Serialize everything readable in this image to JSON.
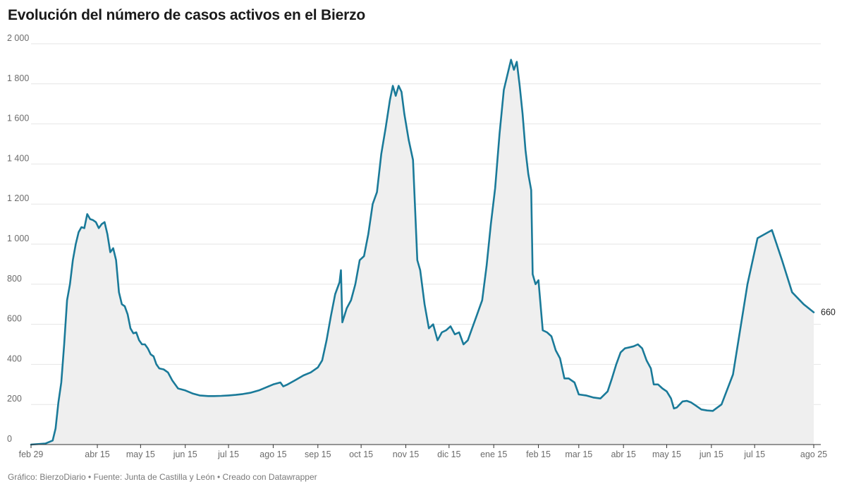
{
  "title": "Evolución del número de casos activos en el Bierzo",
  "footer": "Gráfico: BierzoDiario • Fuente: Junta de Castilla y León • Creado con Datawrapper",
  "colors": {
    "line": "#1a7a99",
    "area": "#efefef",
    "grid": "#e6e6e6",
    "axis": "#333333"
  },
  "chart_data": {
    "type": "area",
    "title": "Evolución del número de casos activos en el Bierzo",
    "ylim": [
      0,
      2000
    ],
    "y_ticks": [
      "0",
      "200",
      "400",
      "600",
      "800",
      "1 000",
      "1 200",
      "1 400",
      "1 600",
      "1 800",
      "2 000"
    ],
    "x_range": [
      "2020-02-29",
      "2021-08-25"
    ],
    "x_ticks": [
      {
        "date": "2020-02-29",
        "label": "feb 29"
      },
      {
        "date": "2020-04-15",
        "label": "abr 15"
      },
      {
        "date": "2020-05-15",
        "label": "may 15"
      },
      {
        "date": "2020-06-15",
        "label": "jun 15"
      },
      {
        "date": "2020-07-15",
        "label": "jul 15"
      },
      {
        "date": "2020-08-15",
        "label": "ago 15"
      },
      {
        "date": "2020-09-15",
        "label": "sep 15"
      },
      {
        "date": "2020-10-15",
        "label": "oct 15"
      },
      {
        "date": "2020-11-15",
        "label": "nov 15"
      },
      {
        "date": "2020-12-15",
        "label": "dic 15"
      },
      {
        "date": "2021-01-15",
        "label": "ene 15"
      },
      {
        "date": "2021-02-15",
        "label": "feb 15"
      },
      {
        "date": "2021-03-15",
        "label": "mar 15"
      },
      {
        "date": "2021-04-15",
        "label": "abr 15"
      },
      {
        "date": "2021-05-15",
        "label": "may 15"
      },
      {
        "date": "2021-06-15",
        "label": "jun 15"
      },
      {
        "date": "2021-07-15",
        "label": "jul 15"
      },
      {
        "date": "2021-08-25",
        "label": "ago 25"
      }
    ],
    "end_label": "660",
    "grid": true,
    "series": [
      {
        "points": [
          [
            "2020-02-29",
            0
          ],
          [
            "2020-03-10",
            5
          ],
          [
            "2020-03-15",
            20
          ],
          [
            "2020-03-17",
            80
          ],
          [
            "2020-03-19",
            210
          ],
          [
            "2020-03-21",
            310
          ],
          [
            "2020-03-23",
            500
          ],
          [
            "2020-03-25",
            720
          ],
          [
            "2020-03-27",
            800
          ],
          [
            "2020-03-29",
            920
          ],
          [
            "2020-03-31",
            1000
          ],
          [
            "2020-04-02",
            1060
          ],
          [
            "2020-04-04",
            1085
          ],
          [
            "2020-04-06",
            1080
          ],
          [
            "2020-04-08",
            1150
          ],
          [
            "2020-04-10",
            1125
          ],
          [
            "2020-04-12",
            1120
          ],
          [
            "2020-04-14",
            1110
          ],
          [
            "2020-04-16",
            1080
          ],
          [
            "2020-04-18",
            1100
          ],
          [
            "2020-04-20",
            1110
          ],
          [
            "2020-04-22",
            1050
          ],
          [
            "2020-04-24",
            960
          ],
          [
            "2020-04-26",
            980
          ],
          [
            "2020-04-28",
            920
          ],
          [
            "2020-04-30",
            760
          ],
          [
            "2020-05-02",
            700
          ],
          [
            "2020-05-04",
            690
          ],
          [
            "2020-05-06",
            650
          ],
          [
            "2020-05-08",
            580
          ],
          [
            "2020-05-10",
            555
          ],
          [
            "2020-05-12",
            560
          ],
          [
            "2020-05-14",
            520
          ],
          [
            "2020-05-16",
            500
          ],
          [
            "2020-05-18",
            500
          ],
          [
            "2020-05-20",
            480
          ],
          [
            "2020-05-22",
            450
          ],
          [
            "2020-05-24",
            440
          ],
          [
            "2020-05-26",
            400
          ],
          [
            "2020-05-28",
            380
          ],
          [
            "2020-05-31",
            375
          ],
          [
            "2020-06-03",
            360
          ],
          [
            "2020-06-06",
            320
          ],
          [
            "2020-06-10",
            280
          ],
          [
            "2020-06-15",
            270
          ],
          [
            "2020-06-20",
            255
          ],
          [
            "2020-06-25",
            245
          ],
          [
            "2020-07-01",
            242
          ],
          [
            "2020-07-05",
            242
          ],
          [
            "2020-07-10",
            243
          ],
          [
            "2020-07-15",
            245
          ],
          [
            "2020-07-20",
            248
          ],
          [
            "2020-07-25",
            252
          ],
          [
            "2020-07-30",
            258
          ],
          [
            "2020-08-05",
            270
          ],
          [
            "2020-08-10",
            285
          ],
          [
            "2020-08-15",
            300
          ],
          [
            "2020-08-20",
            310
          ],
          [
            "2020-08-22",
            290
          ],
          [
            "2020-08-25",
            300
          ],
          [
            "2020-08-30",
            320
          ],
          [
            "2020-09-05",
            345
          ],
          [
            "2020-09-10",
            360
          ],
          [
            "2020-09-15",
            385
          ],
          [
            "2020-09-18",
            420
          ],
          [
            "2020-09-21",
            520
          ],
          [
            "2020-09-24",
            640
          ],
          [
            "2020-09-27",
            750
          ],
          [
            "2020-09-30",
            810
          ],
          [
            "2020-10-01",
            870
          ],
          [
            "2020-10-02",
            610
          ],
          [
            "2020-10-05",
            680
          ],
          [
            "2020-10-08",
            720
          ],
          [
            "2020-10-11",
            800
          ],
          [
            "2020-10-14",
            920
          ],
          [
            "2020-10-17",
            940
          ],
          [
            "2020-10-20",
            1050
          ],
          [
            "2020-10-23",
            1200
          ],
          [
            "2020-10-26",
            1260
          ],
          [
            "2020-10-29",
            1450
          ],
          [
            "2020-11-01",
            1580
          ],
          [
            "2020-11-04",
            1720
          ],
          [
            "2020-11-06",
            1790
          ],
          [
            "2020-11-08",
            1740
          ],
          [
            "2020-11-10",
            1790
          ],
          [
            "2020-11-12",
            1760
          ],
          [
            "2020-11-14",
            1650
          ],
          [
            "2020-11-17",
            1520
          ],
          [
            "2020-11-20",
            1420
          ],
          [
            "2020-11-23",
            920
          ],
          [
            "2020-11-25",
            870
          ],
          [
            "2020-11-28",
            700
          ],
          [
            "2020-12-01",
            580
          ],
          [
            "2020-12-04",
            600
          ],
          [
            "2020-12-07",
            520
          ],
          [
            "2020-12-10",
            560
          ],
          [
            "2020-12-13",
            570
          ],
          [
            "2020-12-16",
            590
          ],
          [
            "2020-12-19",
            550
          ],
          [
            "2020-12-22",
            560
          ],
          [
            "2020-12-25",
            500
          ],
          [
            "2020-12-28",
            520
          ],
          [
            "2020-12-31",
            580
          ],
          [
            "2021-01-03",
            640
          ],
          [
            "2021-01-05",
            680
          ],
          [
            "2021-01-07",
            720
          ],
          [
            "2021-01-10",
            890
          ],
          [
            "2021-01-13",
            1100
          ],
          [
            "2021-01-16",
            1280
          ],
          [
            "2021-01-19",
            1550
          ],
          [
            "2021-01-22",
            1770
          ],
          [
            "2021-01-25",
            1860
          ],
          [
            "2021-01-27",
            1920
          ],
          [
            "2021-01-29",
            1870
          ],
          [
            "2021-01-31",
            1910
          ],
          [
            "2021-02-02",
            1790
          ],
          [
            "2021-02-04",
            1650
          ],
          [
            "2021-02-06",
            1470
          ],
          [
            "2021-02-08",
            1350
          ],
          [
            "2021-02-10",
            1270
          ],
          [
            "2021-02-11",
            850
          ],
          [
            "2021-02-13",
            800
          ],
          [
            "2021-02-15",
            820
          ],
          [
            "2021-02-18",
            570
          ],
          [
            "2021-02-21",
            560
          ],
          [
            "2021-02-24",
            540
          ],
          [
            "2021-02-27",
            470
          ],
          [
            "2021-03-02",
            430
          ],
          [
            "2021-03-05",
            330
          ],
          [
            "2021-03-08",
            330
          ],
          [
            "2021-03-12",
            310
          ],
          [
            "2021-03-15",
            250
          ],
          [
            "2021-03-20",
            245
          ],
          [
            "2021-03-25",
            235
          ],
          [
            "2021-03-30",
            230
          ],
          [
            "2021-04-04",
            265
          ],
          [
            "2021-04-07",
            330
          ],
          [
            "2021-04-10",
            400
          ],
          [
            "2021-04-13",
            460
          ],
          [
            "2021-04-16",
            480
          ],
          [
            "2021-04-19",
            485
          ],
          [
            "2021-04-22",
            490
          ],
          [
            "2021-04-25",
            500
          ],
          [
            "2021-04-28",
            480
          ],
          [
            "2021-05-01",
            420
          ],
          [
            "2021-05-04",
            380
          ],
          [
            "2021-05-06",
            300
          ],
          [
            "2021-05-09",
            300
          ],
          [
            "2021-05-12",
            280
          ],
          [
            "2021-05-15",
            265
          ],
          [
            "2021-05-18",
            230
          ],
          [
            "2021-05-20",
            180
          ],
          [
            "2021-05-22",
            185
          ],
          [
            "2021-05-24",
            200
          ],
          [
            "2021-05-26",
            215
          ],
          [
            "2021-05-29",
            218
          ],
          [
            "2021-06-01",
            210
          ],
          [
            "2021-06-04",
            195
          ],
          [
            "2021-06-08",
            175
          ],
          [
            "2021-06-12",
            170
          ],
          [
            "2021-06-16",
            168
          ],
          [
            "2021-06-22",
            200
          ],
          [
            "2021-06-30",
            350
          ],
          [
            "2021-07-06",
            620
          ],
          [
            "2021-07-10",
            800
          ],
          [
            "2021-07-17",
            1030
          ],
          [
            "2021-07-27",
            1070
          ],
          [
            "2021-08-03",
            920
          ],
          [
            "2021-08-10",
            760
          ],
          [
            "2021-08-18",
            700
          ],
          [
            "2021-08-25",
            660
          ]
        ]
      }
    ]
  }
}
